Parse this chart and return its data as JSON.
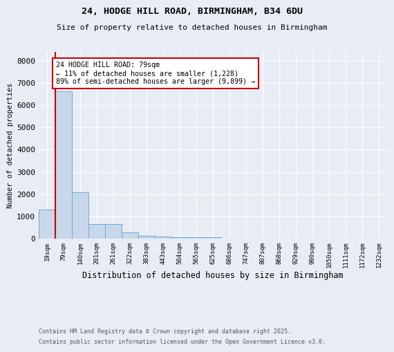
{
  "title_line1": "24, HODGE HILL ROAD, BIRMINGHAM, B34 6DU",
  "title_line2": "Size of property relative to detached houses in Birmingham",
  "xlabel": "Distribution of detached houses by size in Birmingham",
  "ylabel": "Number of detached properties",
  "categories": [
    "19sqm",
    "79sqm",
    "140sqm",
    "201sqm",
    "261sqm",
    "322sqm",
    "383sqm",
    "443sqm",
    "504sqm",
    "565sqm",
    "625sqm",
    "686sqm",
    "747sqm",
    "807sqm",
    "868sqm",
    "929sqm",
    "990sqm",
    "1050sqm",
    "1111sqm",
    "1172sqm",
    "1232sqm"
  ],
  "values": [
    1310,
    6620,
    2100,
    650,
    650,
    295,
    130,
    100,
    55,
    50,
    55,
    0,
    0,
    0,
    0,
    0,
    0,
    0,
    0,
    0,
    0
  ],
  "bar_color": "#c8d8ea",
  "bar_edge_color": "#6aaad4",
  "red_line_index": 1,
  "annotation_text": "24 HODGE HILL ROAD: 79sqm\n← 11% of detached houses are smaller (1,228)\n89% of semi-detached houses are larger (9,899) →",
  "annotation_box_color": "#ffffff",
  "annotation_border_color": "#cc0000",
  "red_line_color": "#cc0000",
  "ylim": [
    0,
    8400
  ],
  "yticks": [
    0,
    1000,
    2000,
    3000,
    4000,
    5000,
    6000,
    7000,
    8000
  ],
  "background_color": "#e8edf5",
  "plot_bg_color": "#e8edf5",
  "grid_color": "#ffffff",
  "footer_line1": "Contains HM Land Registry data © Crown copyright and database right 2025.",
  "footer_line2": "Contains public sector information licensed under the Open Government Licence v3.0."
}
